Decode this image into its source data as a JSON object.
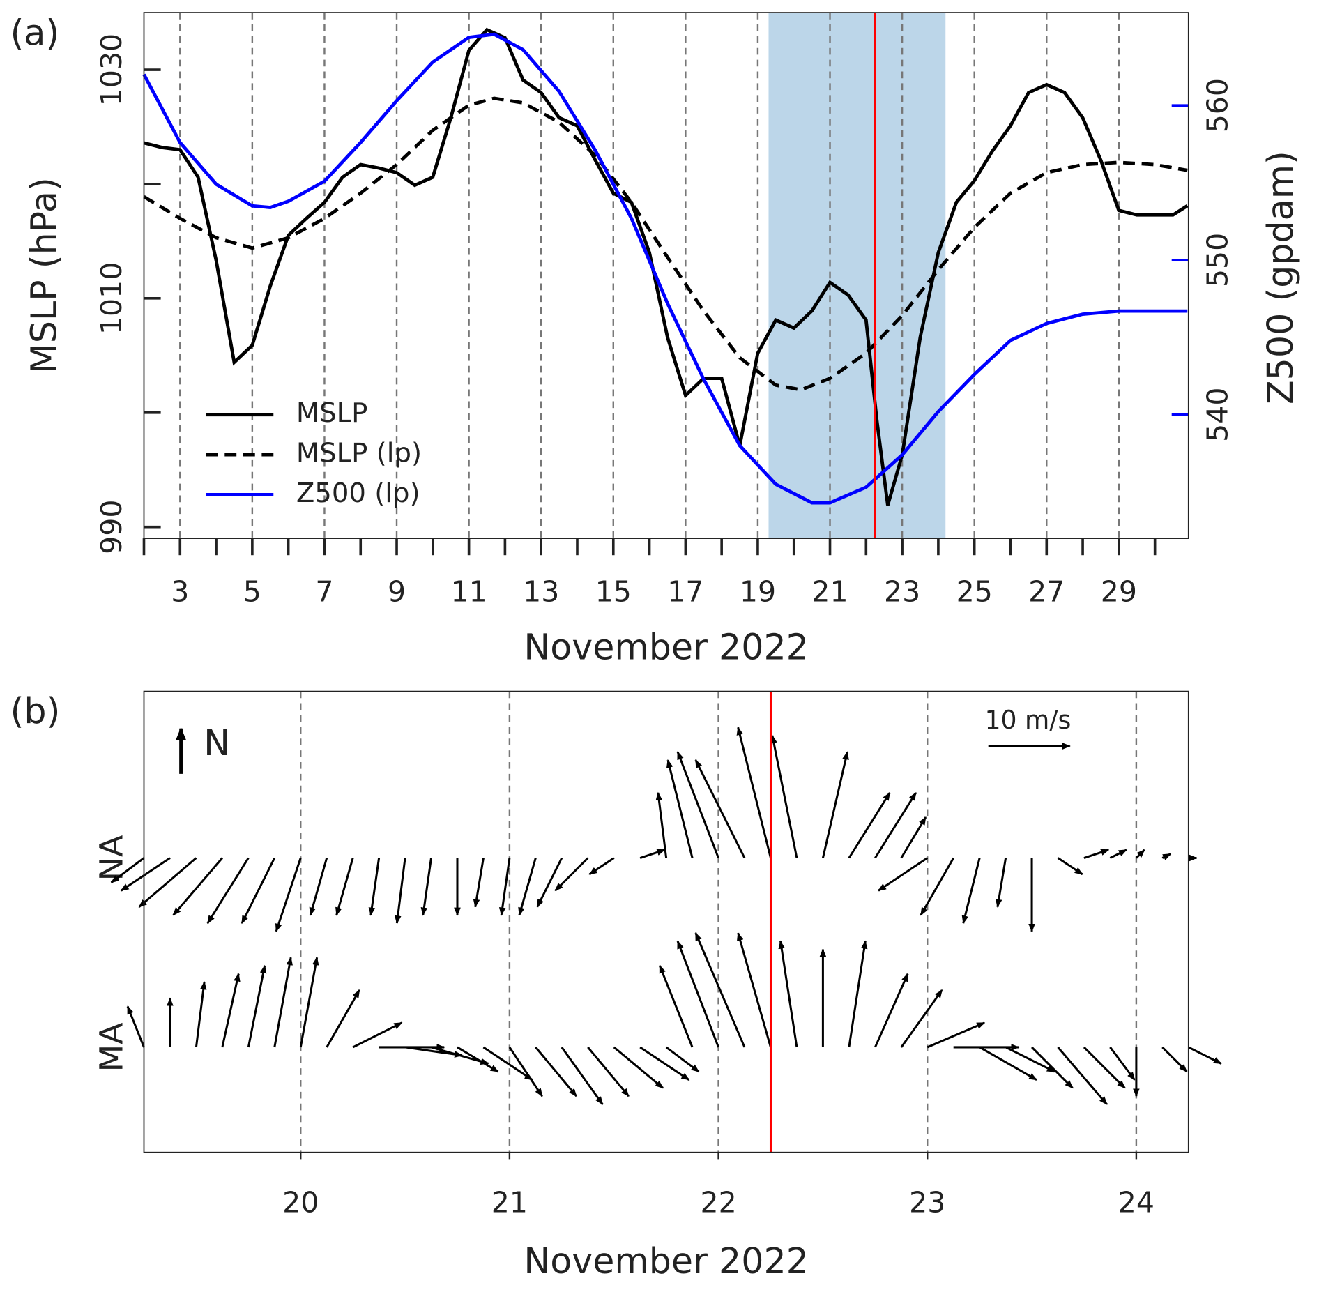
{
  "chart_data": [
    {
      "type": "line",
      "panel_label": "(a)",
      "x_label": "November 2022",
      "y_label": "MSLP (hPa)",
      "y2_label": "Z500 (gpdam)",
      "y2_color": "#0000ff",
      "xlim": [
        2,
        30.93
      ],
      "xticks": [
        3,
        5,
        7,
        9,
        11,
        13,
        15,
        17,
        19,
        21,
        23,
        25,
        27,
        29
      ],
      "xminor_ticks": [
        2,
        4,
        6,
        8,
        10,
        12,
        14,
        16,
        18,
        20,
        22,
        24,
        26,
        28,
        30
      ],
      "ylim": [
        989,
        1035
      ],
      "yticks": [
        990,
        1010,
        1030
      ],
      "yminor_ticks": [
        1000,
        1020
      ],
      "y2lim": [
        532,
        566
      ],
      "y2ticks": [
        540,
        550,
        560
      ],
      "grid": true,
      "legend": "lower left",
      "shade": [
        19.3,
        24.2
      ],
      "shade_color": "#bcd6e9",
      "marker_line": 22.25,
      "marker_color": "#ff0000",
      "series": [
        {
          "name": "MSLP",
          "color": "#000000",
          "dash": "solid",
          "axis": "y",
          "x": [
            2,
            2.5,
            3,
            3.5,
            4,
            4.5,
            5,
            5.5,
            6,
            6.5,
            7,
            7.5,
            8,
            8.5,
            9,
            9.5,
            10,
            10.5,
            11,
            11.5,
            12,
            12.5,
            13,
            13.5,
            14,
            14.5,
            15,
            15.5,
            16,
            16.5,
            17,
            17.5,
            18,
            18.5,
            19,
            19.5,
            20,
            20.5,
            21,
            21.5,
            22,
            22.3,
            22.6,
            23,
            23.5,
            24,
            24.5,
            25,
            25.5,
            26,
            26.5,
            27,
            27.5,
            28,
            28.5,
            29,
            29.5,
            30,
            30.5,
            30.9
          ],
          "values": [
            1023.6,
            1023.2,
            1023.0,
            1020.6,
            1013.3,
            1004.4,
            1005.9,
            1011.1,
            1015.5,
            1017.0,
            1018.4,
            1020.6,
            1021.7,
            1021.4,
            1021.0,
            1019.9,
            1020.6,
            1025.8,
            1031.7,
            1033.5,
            1032.8,
            1029.1,
            1028.0,
            1025.8,
            1025.1,
            1022.1,
            1019.2,
            1018.4,
            1014.0,
            1006.6,
            1001.5,
            1003.0,
            1003.0,
            997.1,
            1005.2,
            1008.1,
            1007.4,
            1008.9,
            1011.4,
            1010.3,
            1008.1,
            999.3,
            991.9,
            996.3,
            1006.6,
            1014.0,
            1018.4,
            1020.3,
            1022.9,
            1025.1,
            1028.0,
            1028.7,
            1028.0,
            1025.8,
            1022.1,
            1017.7,
            1017.3,
            1017.3,
            1017.3,
            1018.1
          ]
        },
        {
          "name": "MSLP (lp)",
          "color": "#000000",
          "dash": "dashed",
          "axis": "y",
          "x": [
            2,
            3,
            4,
            5,
            6,
            7,
            8,
            9,
            10,
            11,
            11.7,
            12.5,
            13.5,
            14.5,
            15.5,
            16.5,
            17.5,
            18.5,
            19.5,
            20.2,
            21,
            22,
            23,
            24,
            25,
            26,
            27,
            28,
            29,
            30,
            30.9
          ],
          "values": [
            1018.9,
            1017.0,
            1015.3,
            1014.4,
            1015.3,
            1017.0,
            1019.2,
            1021.7,
            1024.7,
            1026.9,
            1027.5,
            1027.1,
            1025.4,
            1022.5,
            1018.4,
            1013.6,
            1008.9,
            1004.8,
            1002.4,
            1002.0,
            1003.0,
            1005.2,
            1008.5,
            1012.5,
            1016.2,
            1019.2,
            1021.0,
            1021.7,
            1021.9,
            1021.7,
            1021.2
          ]
        },
        {
          "name": "Z500 (lp)",
          "color": "#0000ff",
          "dash": "solid",
          "axis": "y2",
          "x": [
            2,
            3,
            4,
            5,
            5.5,
            6,
            7,
            8,
            9,
            10,
            11,
            11.7,
            12.5,
            13.5,
            14.5,
            15.5,
            16.5,
            17.5,
            18.5,
            19.5,
            20.5,
            21,
            22,
            23,
            24,
            25,
            26,
            27,
            28,
            29,
            30.9
          ],
          "values": [
            562.0,
            557.6,
            554.9,
            553.5,
            553.4,
            553.8,
            555.1,
            557.6,
            560.3,
            562.8,
            564.4,
            564.6,
            563.6,
            560.9,
            557.1,
            552.7,
            547.2,
            542.3,
            538.0,
            535.5,
            534.3,
            534.3,
            535.3,
            537.4,
            540.2,
            542.6,
            544.8,
            545.9,
            546.5,
            546.7,
            546.7
          ]
        }
      ]
    },
    {
      "type": "quiver",
      "panel_label": "(b)",
      "x_label": "November 2022",
      "north_label": "N",
      "xlim": [
        19.25,
        24.25
      ],
      "xticks": [
        20,
        21,
        22,
        23,
        24
      ],
      "grid": true,
      "marker_line": 22.25,
      "marker_color": "#ff0000",
      "key": {
        "value": 10,
        "label": "10 m/s"
      },
      "x": [
        19.25,
        19.375,
        19.5,
        19.625,
        19.75,
        19.875,
        20.0,
        20.125,
        20.25,
        20.375,
        20.5,
        20.625,
        20.75,
        20.875,
        21.0,
        21.125,
        21.25,
        21.375,
        21.5,
        21.625,
        21.75,
        21.875,
        22.0,
        22.125,
        22.25,
        22.375,
        22.5,
        22.625,
        22.75,
        22.875,
        23.0,
        23.125,
        23.25,
        23.375,
        23.5,
        23.625,
        23.75,
        23.875,
        24.0,
        24.125,
        24.25
      ],
      "rows": [
        {
          "name": "NA",
          "u": [
            -4,
            -6,
            -7,
            -6,
            -5,
            -4,
            -3,
            -2,
            -2,
            -1,
            -1,
            -1,
            0,
            -1,
            -1,
            -2,
            -3,
            -4,
            -3,
            3,
            -1,
            -3,
            -5,
            -6,
            -4,
            -3,
            3,
            5,
            5,
            3,
            -6,
            -4,
            -2,
            -1,
            0,
            3,
            3,
            2,
            1,
            1,
            1
          ],
          "v": [
            -3,
            -4,
            -6,
            -7,
            -8,
            -8,
            -9,
            -7,
            -7,
            -7,
            -8,
            -7,
            -7,
            -6,
            -7,
            -7,
            -6,
            -4,
            -2,
            1,
            8,
            12,
            13,
            12,
            16,
            15,
            13,
            8,
            8,
            5,
            -4,
            -7,
            -8,
            -6,
            -9,
            -2,
            1,
            1,
            1,
            0.5,
            0
          ]
        },
        {
          "name": "MA",
          "u": [
            -2,
            0,
            1,
            2,
            2,
            2,
            2,
            4,
            6,
            8,
            7,
            7,
            5,
            6,
            4,
            5,
            5,
            5,
            6,
            6,
            4,
            -4,
            -5,
            -6,
            -4,
            -2,
            0,
            2,
            4,
            5,
            7,
            8,
            7,
            6,
            5,
            6,
            5,
            3,
            0,
            3,
            4
          ],
          "v": [
            5,
            6,
            8,
            9,
            10,
            11,
            11,
            7,
            3,
            0,
            -1,
            -2,
            -3,
            -4,
            -6,
            -6,
            -7,
            -6,
            -5,
            -4,
            -3,
            10,
            13,
            14,
            14,
            13,
            12,
            13,
            9,
            7,
            3,
            0,
            -4,
            -3,
            -5,
            -7,
            -5,
            -4,
            -6,
            -3,
            -2
          ]
        }
      ]
    }
  ]
}
